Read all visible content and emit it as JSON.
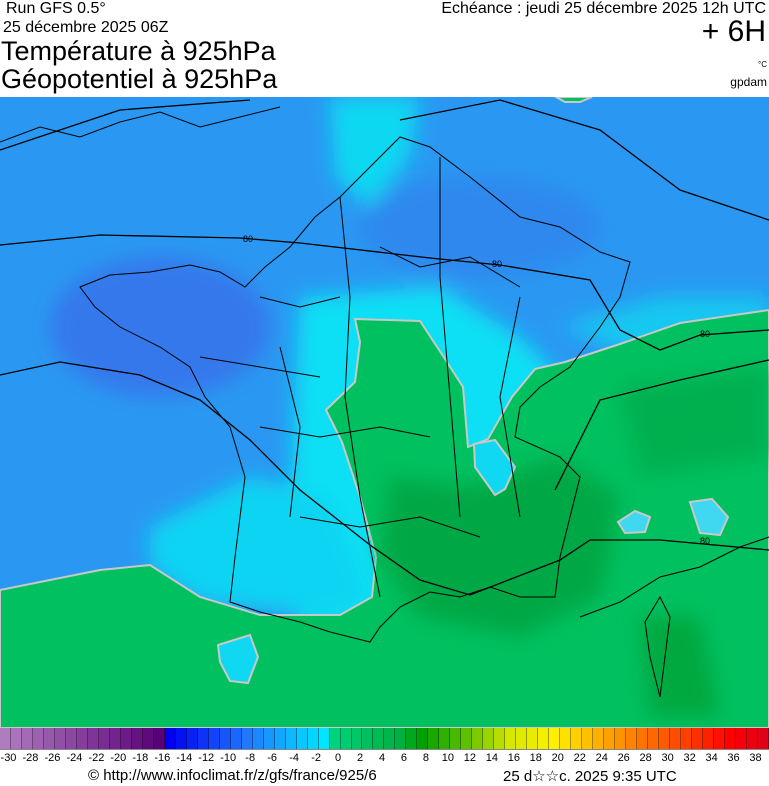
{
  "header": {
    "run": "Run GFS 0.5°",
    "run_date": "25 décembre 2025 06Z",
    "title_line1": "Température à 925hPa",
    "title_line2": "Géopotentiel à 925hPa",
    "echeance": "Echéance : jeudi 25 décembre 2025 12h UTC",
    "offset": "+ 6H",
    "unit_temp": "°C",
    "unit_geo": "gpdam"
  },
  "map": {
    "contour_labels": [
      "80",
      "80",
      "80",
      "80"
    ],
    "colors": {
      "cold_blue": "#2a98f2",
      "deep_blue": "#3478ec",
      "cyan": "#08e0f4",
      "green": "#00c060",
      "dark_green": "#00a844",
      "zero_isotherm": "#c8c8c8",
      "contour": "#000000"
    }
  },
  "legend": {
    "min": -30,
    "max": 39,
    "tick_labels": [
      "-30",
      "-28",
      "-26",
      "-24",
      "-22",
      "-20",
      "-18",
      "-16",
      "-14",
      "-12",
      "-10",
      "-8",
      "-6",
      "-4",
      "-2",
      "0",
      "2",
      "4",
      "6",
      "8",
      "10",
      "12",
      "14",
      "16",
      "18",
      "20",
      "22",
      "24",
      "26",
      "28",
      "30",
      "32",
      "34",
      "36",
      "38"
    ],
    "color_stops": [
      [
        -30,
        "#b07cc0"
      ],
      [
        -16,
        "#5a0078"
      ],
      [
        -15,
        "#0000f0"
      ],
      [
        -8,
        "#2078ff"
      ],
      [
        -1,
        "#00e6ff"
      ],
      [
        0,
        "#00d27c"
      ],
      [
        6,
        "#00b040"
      ],
      [
        8,
        "#00a000"
      ],
      [
        12,
        "#60c000"
      ],
      [
        16,
        "#d4e800"
      ],
      [
        20,
        "#fff000"
      ],
      [
        24,
        "#ffb000"
      ],
      [
        28,
        "#ff7400"
      ],
      [
        32,
        "#ff4000"
      ],
      [
        36,
        "#ff0000"
      ],
      [
        39,
        "#e00018"
      ]
    ]
  },
  "footer": {
    "copyright": "© http://www.infoclimat.fr/z/gfs/france/925/6",
    "generated": "25 d☆☆c. 2025  9:35 UTC"
  }
}
